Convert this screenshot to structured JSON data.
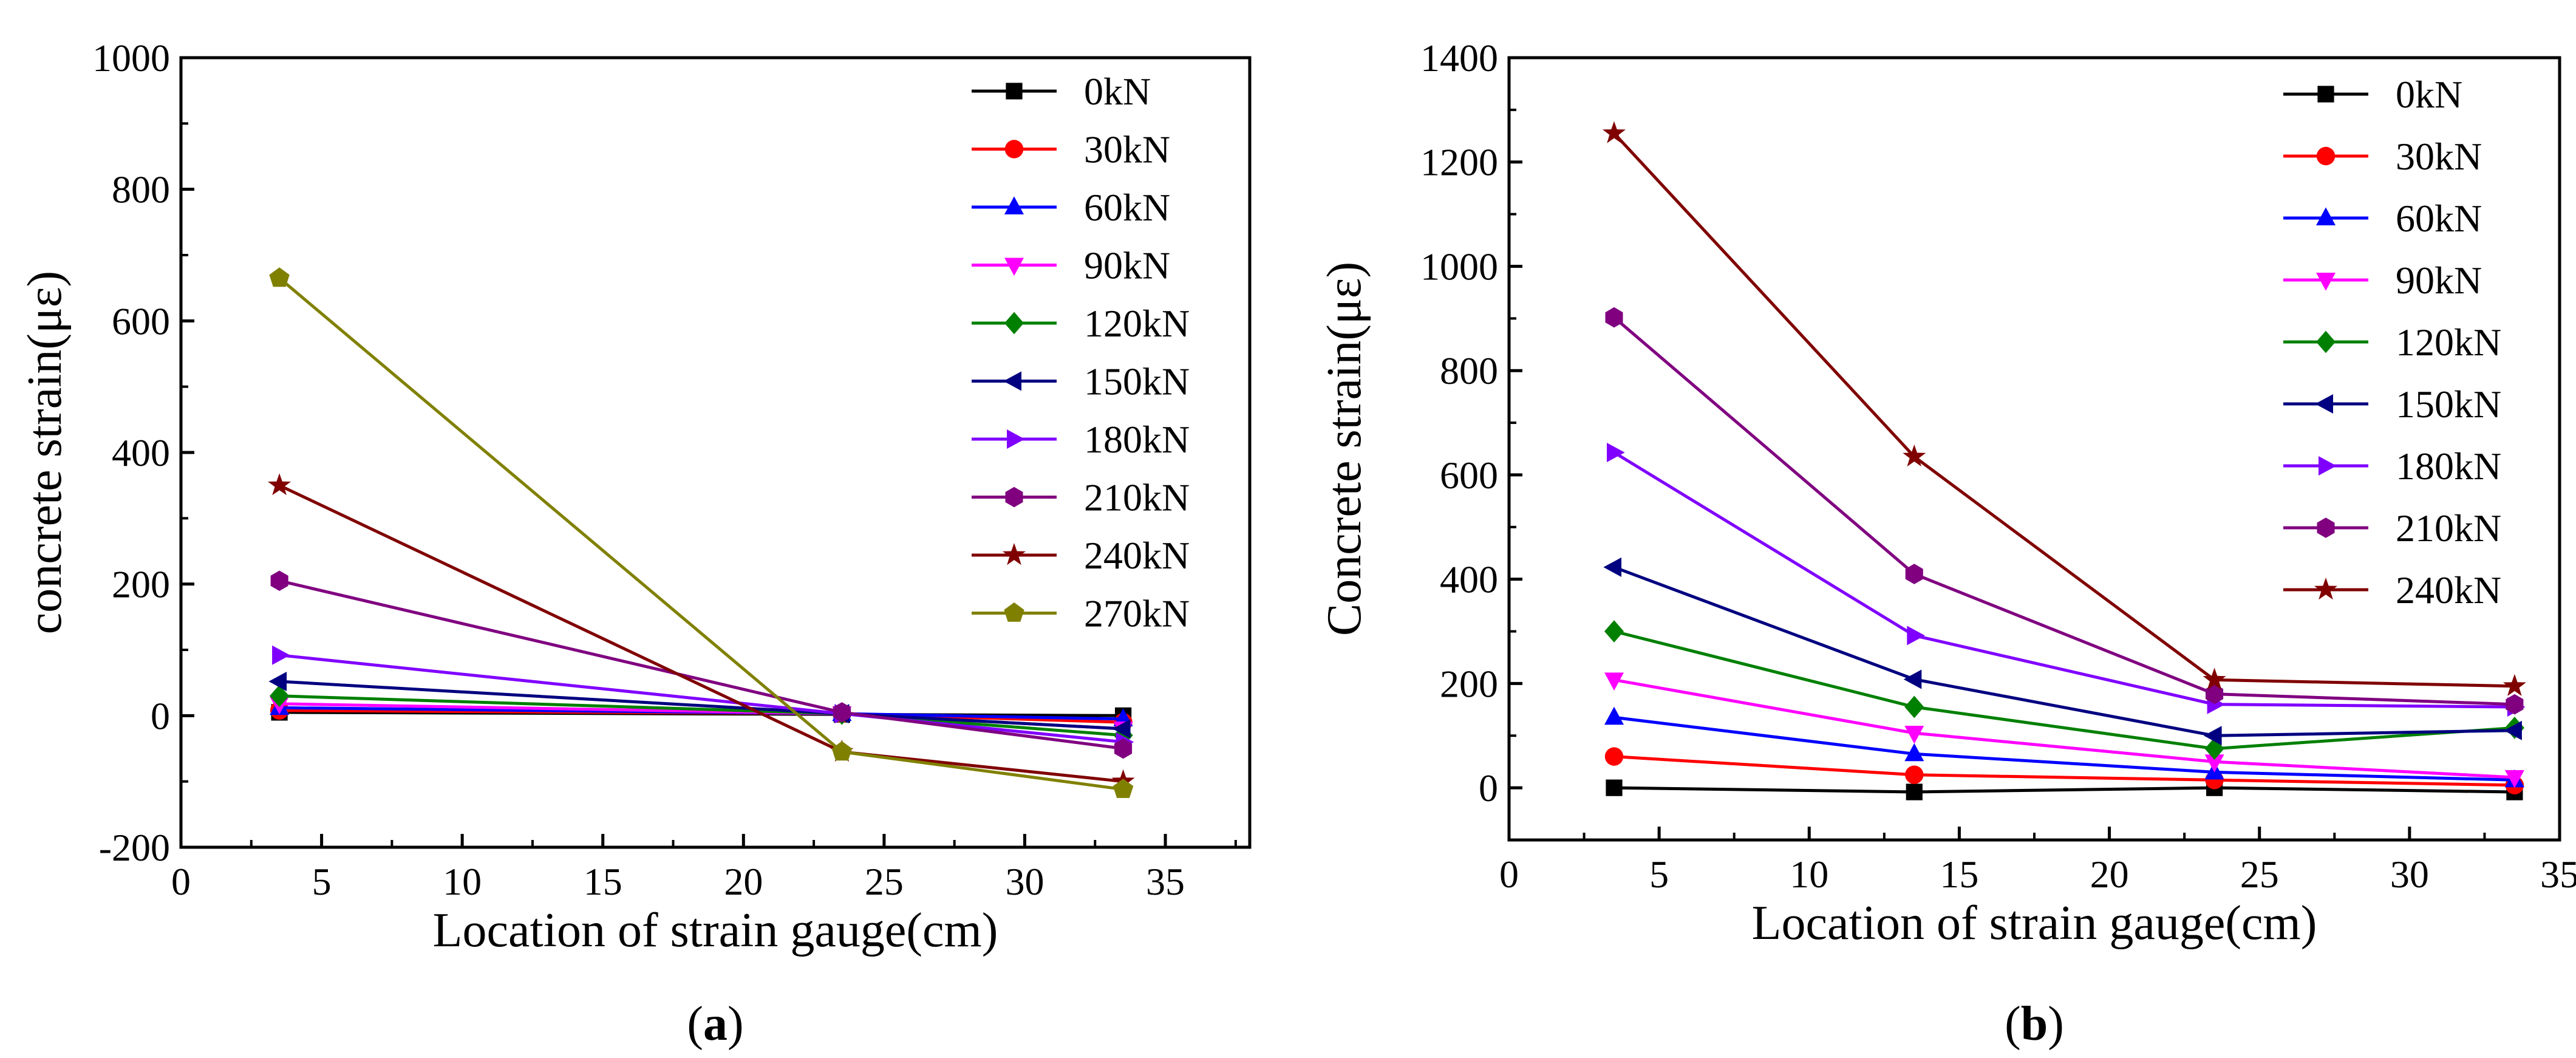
{
  "chart_data": [
    {
      "type": "line",
      "panel_label": "(a)",
      "xlabel": "Location of strain gauge(cm)",
      "ylabel": "concrete strain(με)",
      "xlim": [
        0,
        38
      ],
      "ylim": [
        -200,
        1000
      ],
      "xticks": [
        0,
        5,
        10,
        15,
        20,
        25,
        30,
        35
      ],
      "yticks": [
        -200,
        0,
        200,
        400,
        600,
        800,
        1000
      ],
      "legend_position": "top-right",
      "x": [
        3.5,
        23.5,
        33.5
      ],
      "series": [
        {
          "name": "0kN",
          "color": "#000000",
          "marker": "square",
          "values": [
            5,
            2,
            0
          ]
        },
        {
          "name": "30kN",
          "color": "#ff0000",
          "marker": "circle",
          "values": [
            8,
            3,
            -10
          ]
        },
        {
          "name": "60kN",
          "color": "#0000ff",
          "marker": "triangle-up",
          "values": [
            12,
            3,
            -5
          ]
        },
        {
          "name": "90kN",
          "color": "#ff00ff",
          "marker": "triangle-down",
          "values": [
            18,
            3,
            -20
          ]
        },
        {
          "name": "120kN",
          "color": "#008000",
          "marker": "diamond",
          "values": [
            30,
            3,
            -30
          ]
        },
        {
          "name": "150kN",
          "color": "#000080",
          "marker": "triangle-left",
          "values": [
            52,
            3,
            -20
          ]
        },
        {
          "name": "180kN",
          "color": "#8000ff",
          "marker": "triangle-right",
          "values": [
            92,
            3,
            -40
          ]
        },
        {
          "name": "210kN",
          "color": "#800080",
          "marker": "hexagon",
          "values": [
            205,
            5,
            -50
          ]
        },
        {
          "name": "240kN",
          "color": "#800000",
          "marker": "star",
          "values": [
            350,
            -55,
            -100
          ]
        },
        {
          "name": "270kN",
          "color": "#808000",
          "marker": "pentagon",
          "values": [
            665,
            -55,
            -112
          ]
        }
      ]
    },
    {
      "type": "line",
      "panel_label": "(b)",
      "xlabel": "Location of strain gauge(cm)",
      "ylabel": "Concrete strain(με)",
      "xlim": [
        0,
        35
      ],
      "ylim": [
        -100,
        1400
      ],
      "xticks": [
        0,
        5,
        10,
        15,
        20,
        25,
        30,
        35
      ],
      "yticks": [
        0,
        200,
        400,
        600,
        800,
        1000,
        1200,
        1400
      ],
      "legend_position": "top-right",
      "x": [
        3.5,
        13.5,
        23.5,
        33.5
      ],
      "series": [
        {
          "name": "0kN",
          "color": "#000000",
          "marker": "square",
          "values": [
            0,
            -8,
            0,
            -8
          ]
        },
        {
          "name": "30kN",
          "color": "#ff0000",
          "marker": "circle",
          "values": [
            60,
            25,
            15,
            5
          ]
        },
        {
          "name": "60kN",
          "color": "#0000ff",
          "marker": "triangle-up",
          "values": [
            135,
            65,
            30,
            15
          ]
        },
        {
          "name": "90kN",
          "color": "#ff00ff",
          "marker": "triangle-down",
          "values": [
            207,
            105,
            50,
            20
          ]
        },
        {
          "name": "120kN",
          "color": "#008000",
          "marker": "diamond",
          "values": [
            300,
            155,
            75,
            115
          ]
        },
        {
          "name": "150kN",
          "color": "#000080",
          "marker": "triangle-left",
          "values": [
            423,
            208,
            100,
            110
          ]
        },
        {
          "name": "180kN",
          "color": "#8000ff",
          "marker": "triangle-right",
          "values": [
            643,
            292,
            160,
            155
          ]
        },
        {
          "name": "210kN",
          "color": "#800080",
          "marker": "hexagon",
          "values": [
            902,
            410,
            180,
            160
          ]
        },
        {
          "name": "240kN",
          "color": "#800000",
          "marker": "star",
          "values": [
            1255,
            635,
            207,
            195
          ]
        }
      ]
    }
  ]
}
